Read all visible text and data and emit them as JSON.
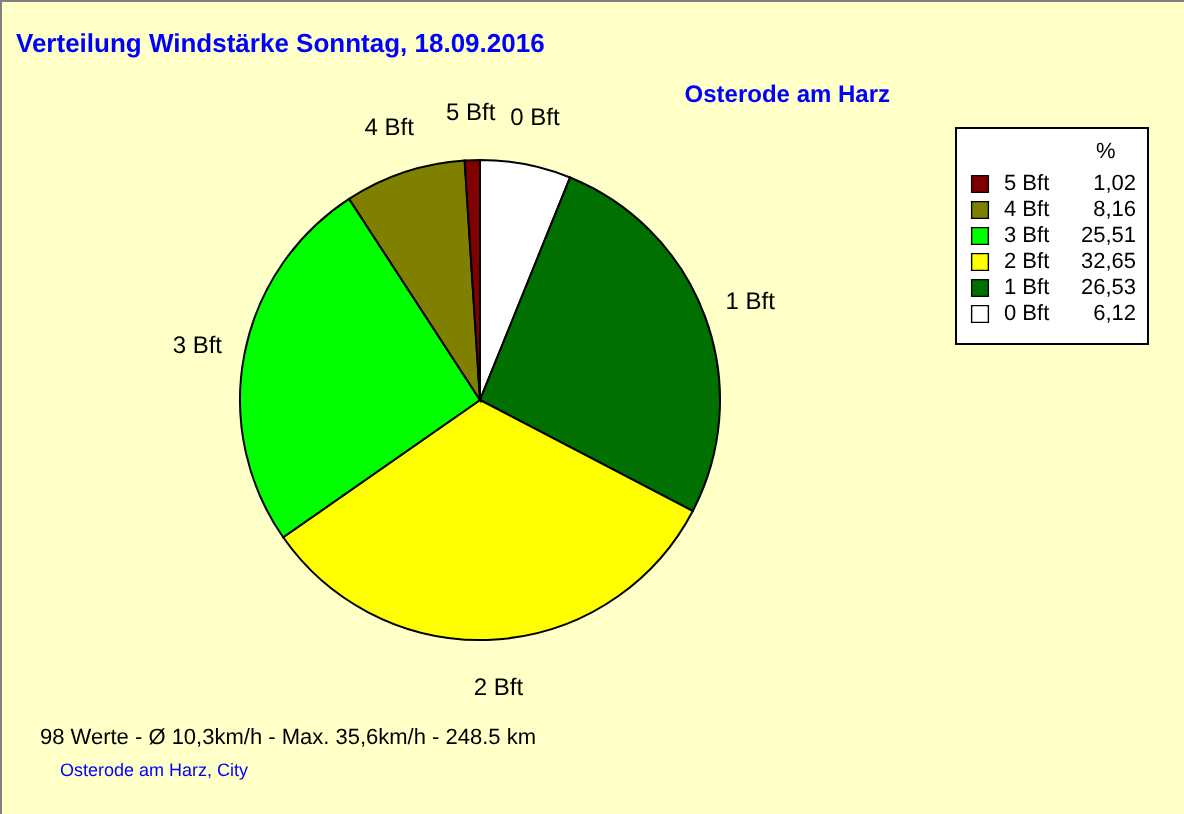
{
  "chart_data": {
    "type": "pie",
    "title": "Verteilung Windstärke  Sonntag, 18.09.2016",
    "subtitle": "Osterode am Harz",
    "categories": [
      "0 Bft",
      "1 Bft",
      "2 Bft",
      "3 Bft",
      "4 Bft",
      "5 Bft"
    ],
    "values": [
      6.12,
      26.53,
      32.65,
      25.51,
      8.16,
      1.02
    ],
    "colors": [
      "#ffffff",
      "#007000",
      "#ffff00",
      "#00ff00",
      "#808000",
      "#800000"
    ],
    "value_labels": [
      "6,12",
      "26,53",
      "32,65",
      "25,51",
      "8,16",
      "1,02"
    ],
    "legend": "top right",
    "legend_title": "%",
    "annotations": [
      "98 Werte   -   Ø 10,3km/h  -  Max. 35,6km/h   -   248.5 km",
      "Osterode am Harz, City"
    ]
  }
}
